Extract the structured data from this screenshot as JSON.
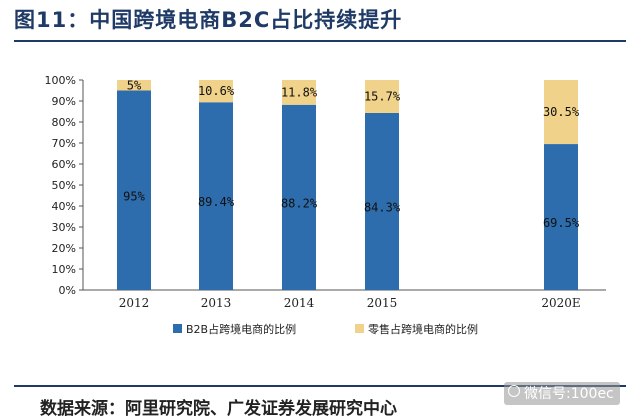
{
  "header": {
    "title": "图11：中国跨境电商B2C占比持续提升"
  },
  "footer": {
    "source": "数据来源：阿里研究院、广发证券发展研究中心"
  },
  "watermark": {
    "text": "微信号:100ec"
  },
  "chart_data": {
    "type": "bar",
    "stacked": true,
    "categories": [
      "2012",
      "2013",
      "2014",
      "2015",
      "2020E"
    ],
    "series": [
      {
        "name": "B2B占跨境电商的比例",
        "color": "#2e6dad",
        "values": [
          95,
          89.4,
          88.2,
          84.3,
          69.5
        ],
        "labels": [
          "95%",
          "89.4%",
          "88.2%",
          "84.3%",
          "69.5%"
        ]
      },
      {
        "name": "零售占跨境电商的比例",
        "color": "#f0d28a",
        "values": [
          5,
          10.6,
          11.8,
          15.7,
          30.5
        ],
        "labels": [
          "5%",
          "10.6%",
          "11.8%",
          "15.7%",
          "30.5%"
        ]
      }
    ],
    "ylim": [
      0,
      100
    ],
    "y_ticks": [
      "0%",
      "10%",
      "20%",
      "30%",
      "40%",
      "50%",
      "60%",
      "70%",
      "80%",
      "90%",
      "100%"
    ],
    "legend_position": "bottom",
    "grid": false
  }
}
